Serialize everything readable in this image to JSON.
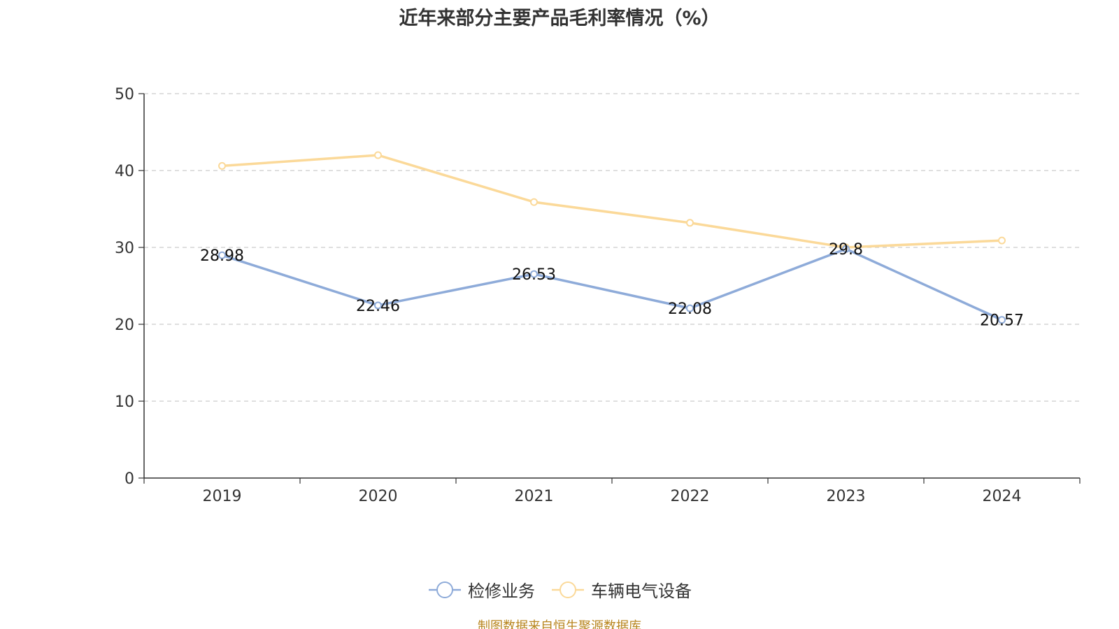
{
  "title": "近年来部分主要产品毛利率情况（%）",
  "source_note": "制图数据来自恒生聚源数据库",
  "chart_data": {
    "type": "line",
    "title": "近年来部分主要产品毛利率情况（%）",
    "categories": [
      "2019",
      "2020",
      "2021",
      "2022",
      "2023",
      "2024"
    ],
    "series": [
      {
        "name": "检修业务",
        "color": "#8eabd9",
        "values": [
          28.98,
          22.46,
          26.53,
          22.08,
          29.8,
          20.57
        ],
        "data_labels": [
          "28.98",
          "22.46",
          "26.53",
          "22.08",
          "29.8",
          "20.57"
        ]
      },
      {
        "name": "车辆电气设备",
        "color": "#fbd999",
        "values": [
          40.6,
          42.0,
          35.9,
          33.2,
          30.0,
          30.9
        ]
      }
    ],
    "y_ticks": [
      "0",
      "10",
      "20",
      "30",
      "40",
      "50"
    ],
    "ylim": [
      0,
      50
    ],
    "grid": true,
    "grid_style": "dashed horizontal",
    "legend_position": "bottom",
    "xlabel": "",
    "ylabel": ""
  }
}
